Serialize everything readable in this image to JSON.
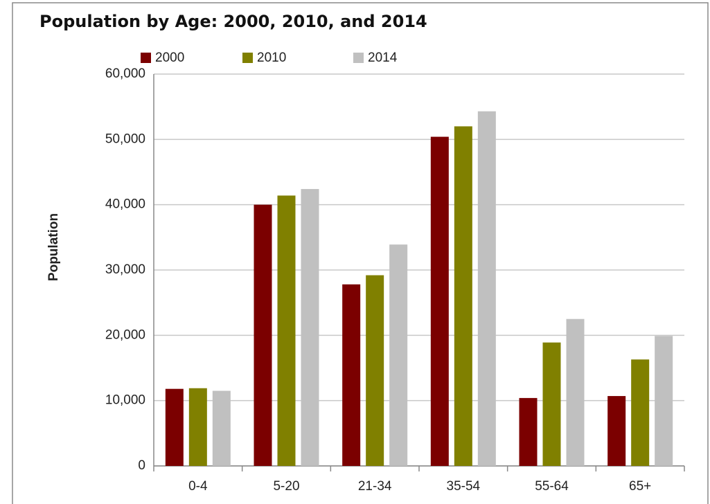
{
  "chart_data": {
    "type": "bar",
    "title": "Population by Age: 2000, 2010, and 2014",
    "y_label": "Population",
    "categories": [
      "0-4",
      "5-20",
      "21-34",
      "35-54",
      "55-64",
      "65+"
    ],
    "series": [
      {
        "name": "2000",
        "color": "#7b0000",
        "values": [
          11800,
          40000,
          27800,
          50400,
          10400,
          10700
        ]
      },
      {
        "name": "2010",
        "color": "#808000",
        "values": [
          11900,
          41400,
          29200,
          52000,
          18900,
          16300
        ]
      },
      {
        "name": "2014",
        "color": "#c0c0c0",
        "values": [
          11500,
          42400,
          33900,
          54300,
          22500,
          19900
        ]
      }
    ],
    "ylim": [
      0,
      60000
    ],
    "yticks": [
      0,
      {
        "value": 10000,
        "label": "10,000"
      },
      {
        "value": 20000,
        "label": "20,000"
      },
      {
        "value": 30000,
        "label": "30,000"
      },
      {
        "value": 40000,
        "label": "40,000"
      },
      {
        "value": 50000,
        "label": "50,000"
      },
      {
        "value": 60000,
        "label": "60,000"
      }
    ],
    "grid": true,
    "legend": "top"
  }
}
